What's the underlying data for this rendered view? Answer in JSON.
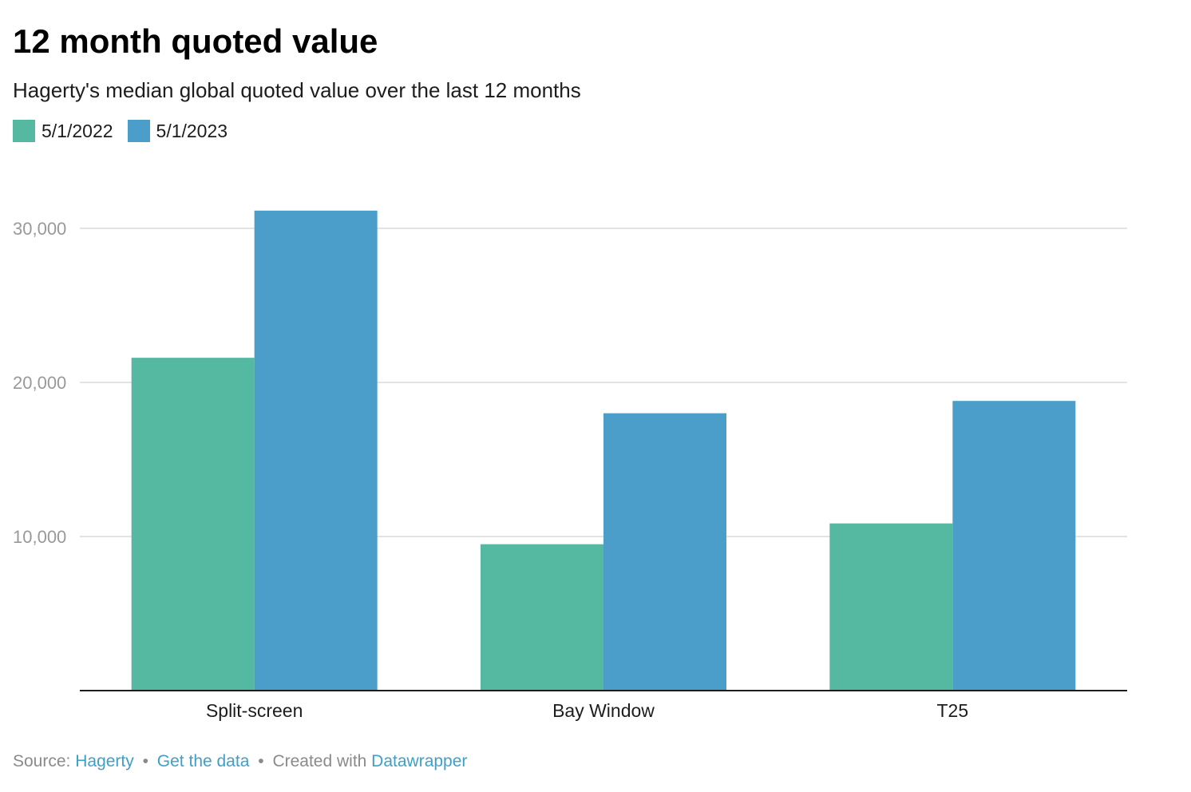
{
  "header": {
    "title": "12 month quoted value",
    "subtitle": "Hagerty's median global quoted value over the last 12 months"
  },
  "footer": {
    "source_label": "Source:",
    "source_link": "Hagerty",
    "data_link": "Get the data",
    "separator": "•",
    "created_label": "Created with",
    "created_link": "Datawrapper"
  },
  "chart_data": {
    "type": "bar",
    "categories": [
      "Split-screen",
      "Bay Window",
      "T25"
    ],
    "series": [
      {
        "name": "5/1/2022",
        "color": "#55b8a0",
        "values": [
          21600,
          9500,
          10850
        ]
      },
      {
        "name": "5/1/2023",
        "color": "#4b9ec9",
        "values": [
          31150,
          18000,
          18800
        ]
      }
    ],
    "ylim": [
      0,
      33000
    ],
    "yticks": [
      10000,
      20000,
      30000
    ],
    "ytick_labels": [
      "10,000",
      "20,000",
      "30,000"
    ],
    "grid": true,
    "legend_position": "top-left"
  }
}
